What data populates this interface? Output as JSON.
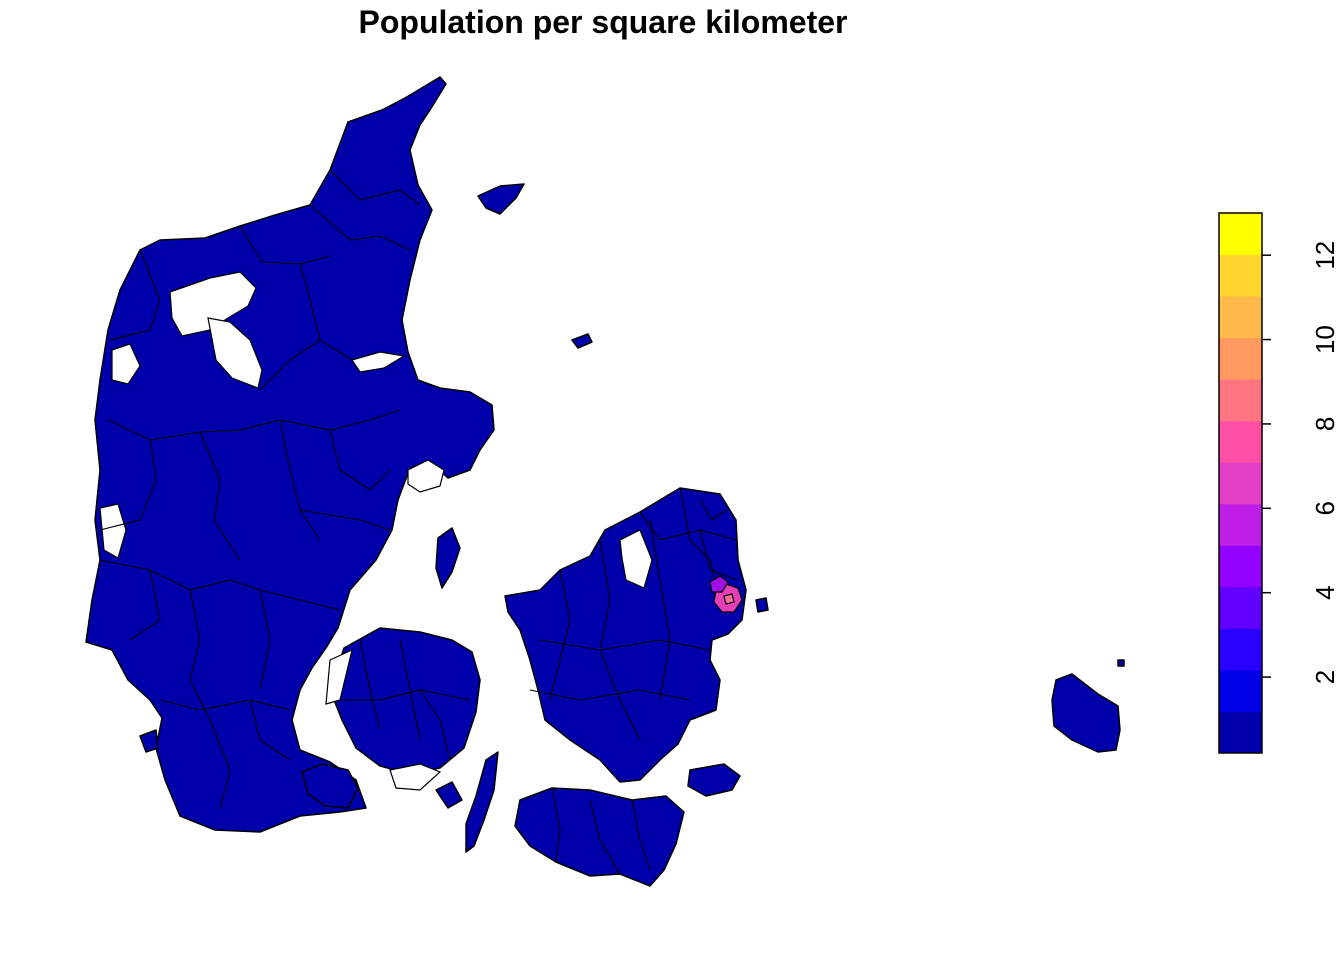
{
  "title": "Population per square kilometer",
  "map": {
    "region": "Denmark",
    "unit_type": "municipality",
    "base_fill": "#0000AA",
    "border_color": "#000000",
    "highlight": {
      "area": "Copenhagen",
      "fill": "#E63EB6"
    }
  },
  "legend": {
    "min": 0.2,
    "max": 13,
    "ticks": [
      "2",
      "4",
      "6",
      "8",
      "10",
      "12"
    ],
    "tick_values": [
      2,
      4,
      6,
      8,
      10,
      12
    ],
    "colors": [
      "#0000AA",
      "#0000E6",
      "#2A00FF",
      "#6100FF",
      "#9200FF",
      "#BF1EE6",
      "#E23EC8",
      "#FF50A6",
      "#FF7682",
      "#FF995F",
      "#FFB84A",
      "#FFD42F",
      "#FFFF00"
    ]
  }
}
